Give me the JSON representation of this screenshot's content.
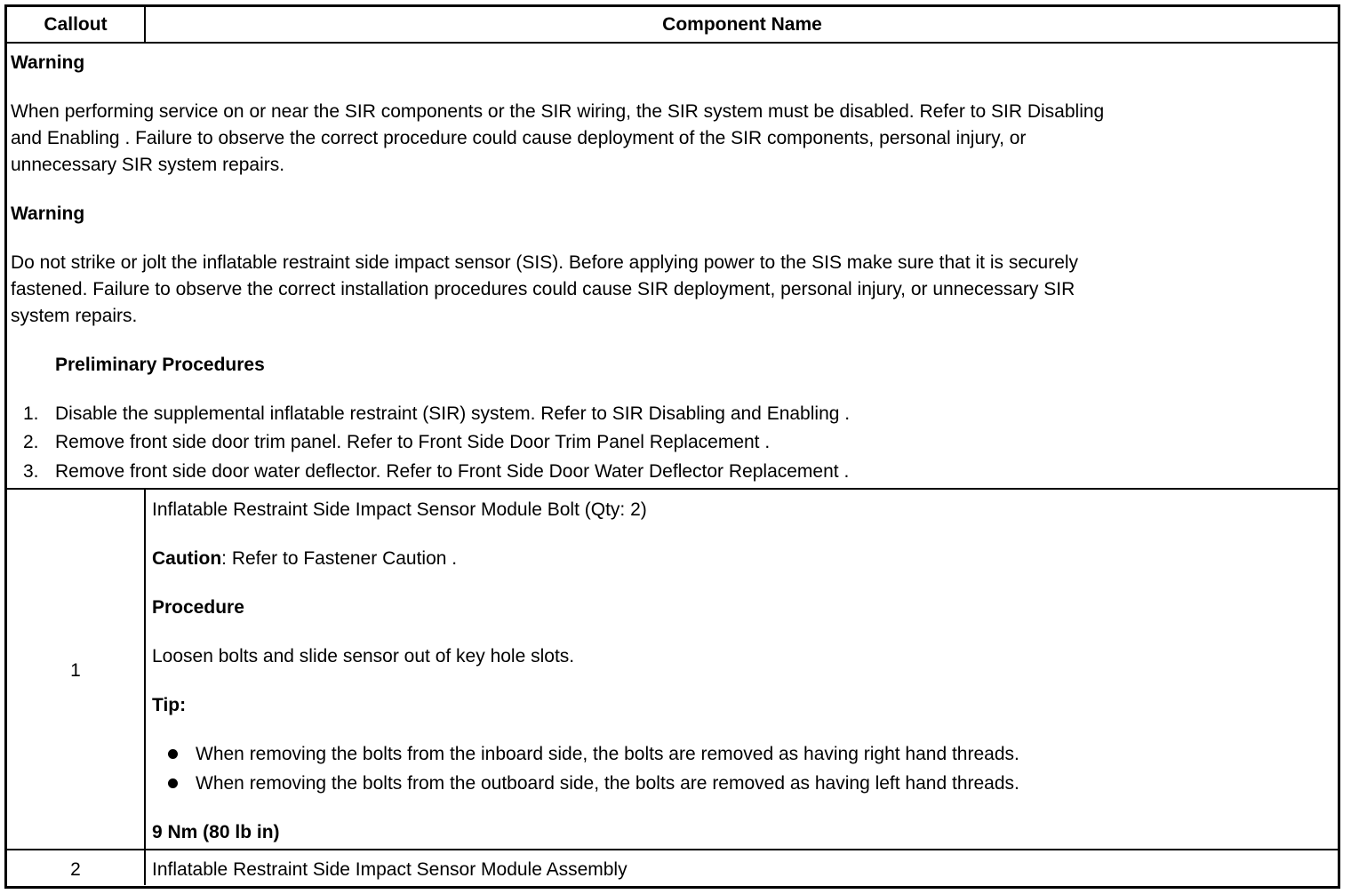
{
  "header": {
    "callout": "Callout",
    "component_name": "Component Name"
  },
  "warnings": [
    {
      "title": "Warning",
      "lines": [
        "When performing service on or near the SIR components or the SIR wiring, the SIR system must be disabled. Refer to SIR Disabling",
        "and Enabling . Failure to observe the correct procedure could cause deployment of the SIR components, personal injury, or",
        "unnecessary SIR system repairs."
      ]
    },
    {
      "title": "Warning",
      "lines": [
        "Do not strike or jolt the inflatable restraint side impact sensor (SIS). Before applying power to the SIS make sure that it is securely",
        "fastened. Failure to observe the correct installation procedures could cause SIR deployment, personal injury, or unnecessary SIR",
        "system repairs."
      ]
    }
  ],
  "preliminary": {
    "title": "Preliminary Procedures",
    "steps": [
      {
        "num": "1.",
        "text": "Disable the supplemental inflatable restraint (SIR) system. Refer to SIR Disabling and Enabling ."
      },
      {
        "num": "2.",
        "text": "Remove front side door trim panel. Refer to Front Side Door Trim Panel Replacement ."
      },
      {
        "num": "3.",
        "text": "Remove front side door water deflector. Refer to Front Side Door Water Deflector Replacement ."
      }
    ]
  },
  "rows": [
    {
      "callout": "1",
      "name": "Inflatable Restraint Side Impact Sensor Module Bolt (Qty: 2)",
      "caution_label": "Caution",
      "caution_text": ": Refer to Fastener Caution .",
      "procedure_label": "Procedure",
      "procedure_text": "Loosen bolts and slide sensor out of key hole slots.",
      "tip_label": "Tip:",
      "tips": [
        "When removing the bolts from the inboard side, the bolts are removed as having right hand threads.",
        "When removing the bolts from the outboard side, the bolts are removed as having left hand threads."
      ],
      "torque": "9 Nm (80 lb in)"
    },
    {
      "callout": "2",
      "name": "Inflatable Restraint Side Impact Sensor Module Assembly"
    }
  ]
}
